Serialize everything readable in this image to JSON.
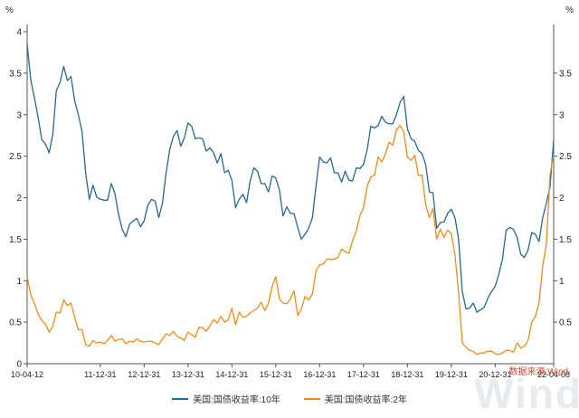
{
  "chart_data": {
    "type": "line",
    "title": "",
    "y_unit": "%",
    "ylim": [
      0,
      4
    ],
    "y_ticks_left": [
      0,
      0.5,
      1,
      1.5,
      2,
      2.5,
      3,
      3.5,
      4
    ],
    "y_ticks_right": [
      0.5,
      1,
      1.5,
      2,
      2.5,
      3,
      3.5
    ],
    "grid": false,
    "legend_position": "bottom",
    "x_tick_labels": [
      "10-04-12",
      "11-12-31",
      "12-12-31",
      "13-12-31",
      "14-12-31",
      "15-12-31",
      "16-12-31",
      "17-12-31",
      "18-12-31",
      "19-12-31",
      "20-12-31",
      "22-04-08"
    ],
    "x_tick_indices": [
      0,
      20,
      32,
      44,
      56,
      68,
      80,
      92,
      104,
      116,
      128,
      144
    ],
    "series": [
      {
        "name": "美国:国债收益率:10年",
        "color": "#26698e",
        "values": [
          3.85,
          3.42,
          3.2,
          2.97,
          2.7,
          2.65,
          2.54,
          2.76,
          3.29,
          3.39,
          3.58,
          3.41,
          3.46,
          3.17,
          3.0,
          2.8,
          2.3,
          1.98,
          2.15,
          2.01,
          1.98,
          1.97,
          1.97,
          2.17,
          2.05,
          1.8,
          1.62,
          1.53,
          1.68,
          1.72,
          1.75,
          1.65,
          1.72,
          1.91,
          1.98,
          1.96,
          1.76,
          1.93,
          2.3,
          2.58,
          2.74,
          2.81,
          2.62,
          2.72,
          2.9,
          2.86,
          2.71,
          2.72,
          2.71,
          2.56,
          2.6,
          2.54,
          2.42,
          2.53,
          2.3,
          2.33,
          2.21,
          1.88,
          1.98,
          2.04,
          1.94,
          2.2,
          2.36,
          2.32,
          2.17,
          2.17,
          2.07,
          2.26,
          2.24,
          2.09,
          1.78,
          1.89,
          1.81,
          1.81,
          1.64,
          1.5,
          1.56,
          1.63,
          1.76,
          2.14,
          2.49,
          2.43,
          2.42,
          2.48,
          2.3,
          2.3,
          2.19,
          2.32,
          2.21,
          2.2,
          2.36,
          2.35,
          2.4,
          2.58,
          2.86,
          2.84,
          2.87,
          2.98,
          2.91,
          2.89,
          2.89,
          3.0,
          3.15,
          3.22,
          2.83,
          2.71,
          2.68,
          2.57,
          2.53,
          2.4,
          2.07,
          2.06,
          1.63,
          1.7,
          1.71,
          1.81,
          1.86,
          1.76,
          1.5,
          0.87,
          0.66,
          0.67,
          0.73,
          0.62,
          0.65,
          0.68,
          0.79,
          0.87,
          0.93,
          1.08,
          1.26,
          1.61,
          1.64,
          1.62,
          1.52,
          1.32,
          1.28,
          1.37,
          1.58,
          1.56,
          1.47,
          1.76,
          1.93,
          2.13,
          2.7
        ]
      },
      {
        "name": "美国:国债收益率:2年",
        "color": "#f08c1b",
        "values": [
          1.05,
          0.83,
          0.72,
          0.6,
          0.52,
          0.48,
          0.38,
          0.45,
          0.62,
          0.61,
          0.77,
          0.7,
          0.73,
          0.56,
          0.41,
          0.41,
          0.23,
          0.21,
          0.28,
          0.25,
          0.26,
          0.24,
          0.28,
          0.34,
          0.27,
          0.29,
          0.3,
          0.24,
          0.27,
          0.26,
          0.3,
          0.27,
          0.26,
          0.27,
          0.27,
          0.25,
          0.23,
          0.3,
          0.36,
          0.34,
          0.39,
          0.33,
          0.31,
          0.28,
          0.38,
          0.35,
          0.32,
          0.44,
          0.43,
          0.39,
          0.46,
          0.53,
          0.49,
          0.57,
          0.5,
          0.53,
          0.67,
          0.47,
          0.62,
          0.56,
          0.57,
          0.61,
          0.64,
          0.67,
          0.74,
          0.64,
          0.73,
          0.93,
          1.05,
          0.78,
          0.73,
          0.72,
          0.78,
          0.88,
          0.58,
          0.66,
          0.81,
          0.77,
          0.84,
          1.12,
          1.19,
          1.2,
          1.26,
          1.26,
          1.26,
          1.28,
          1.38,
          1.35,
          1.33,
          1.48,
          1.6,
          1.78,
          1.88,
          2.14,
          2.25,
          2.27,
          2.49,
          2.43,
          2.53,
          2.67,
          2.63,
          2.82,
          2.87,
          2.79,
          2.49,
          2.45,
          2.51,
          2.27,
          2.27,
          1.92,
          1.76,
          1.87,
          1.5,
          1.62,
          1.52,
          1.61,
          1.57,
          1.31,
          0.86,
          0.25,
          0.2,
          0.16,
          0.15,
          0.11,
          0.13,
          0.13,
          0.15,
          0.15,
          0.12,
          0.11,
          0.13,
          0.16,
          0.16,
          0.14,
          0.25,
          0.19,
          0.21,
          0.28,
          0.5,
          0.57,
          0.73,
          1.18,
          1.43,
          2.28,
          2.52
        ]
      }
    ]
  },
  "legend": {
    "item_10y": "美国:国债收益率:10年",
    "item_2y": "美国:国债收益率:2年"
  },
  "source_label": "数据来源:Wind",
  "watermark": "Wind"
}
